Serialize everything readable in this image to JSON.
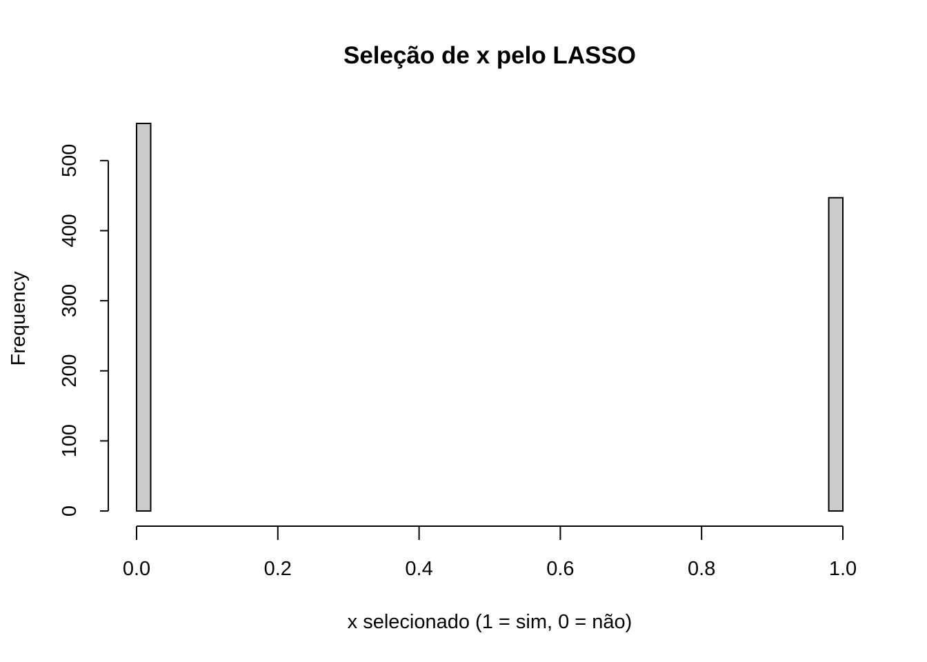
{
  "chart_data": {
    "type": "histogram",
    "title": "Seleção de x pelo LASSO",
    "x_label": "x selecionado (1 = sim, 0 = não)",
    "y_label": "Frequency",
    "bins": [
      0,
      0.02,
      0.04,
      0.06,
      0.08,
      0.1,
      0.12,
      0.14,
      0.16,
      0.18,
      0.2,
      0.22,
      0.24,
      0.26,
      0.28,
      0.3,
      0.32,
      0.34,
      0.36,
      0.38,
      0.4,
      0.42,
      0.44,
      0.46,
      0.48,
      0.5,
      0.52,
      0.54,
      0.56,
      0.58,
      0.6,
      0.62,
      0.64,
      0.66,
      0.68,
      0.7,
      0.72,
      0.74,
      0.76,
      0.78,
      0.8,
      0.82,
      0.84,
      0.86,
      0.88,
      0.9,
      0.92,
      0.94,
      0.96,
      0.98,
      1
    ],
    "values": [
      553,
      0,
      0,
      0,
      0,
      0,
      0,
      0,
      0,
      0,
      0,
      0,
      0,
      0,
      0,
      0,
      0,
      0,
      0,
      0,
      0,
      0,
      0,
      0,
      0,
      0,
      0,
      0,
      0,
      0,
      0,
      0,
      0,
      0,
      0,
      0,
      0,
      0,
      0,
      0,
      0,
      0,
      0,
      0,
      0,
      0,
      0,
      0,
      0,
      447
    ],
    "color": "#cccccc",
    "xlim": [
      0,
      1
    ],
    "xticks": [
      {
        "value": 0,
        "label": "0.0"
      },
      0.2,
      0.4,
      0.6,
      0.8,
      {
        "value": 1,
        "label": "1.0"
      }
    ],
    "ylim": [
      0,
      553
    ],
    "yticks": [
      0,
      100,
      200,
      300,
      400,
      500
    ]
  }
}
